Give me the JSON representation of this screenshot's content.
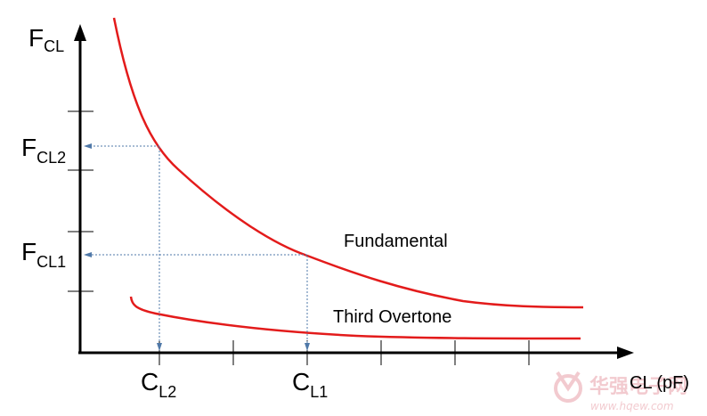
{
  "chart_data": {
    "type": "line",
    "title": "",
    "ylabel": "F",
    "ylabel_sub": "CL",
    "xlabel": "CL (pF)",
    "series": [
      {
        "name": "Fundamental",
        "color": "#e31b1b"
      },
      {
        "name": "Third Overtone",
        "color": "#e31b1b"
      }
    ],
    "markers": {
      "x": [
        {
          "main": "C",
          "sub": "L2"
        },
        {
          "main": "C",
          "sub": "L1"
        }
      ],
      "y": [
        {
          "main": "F",
          "sub": "CL2"
        },
        {
          "main": "F",
          "sub": "CL1"
        }
      ]
    }
  },
  "colors": {
    "axis": "#000000",
    "curve": "#e31b1b",
    "guide": "#4f78a8",
    "watermark": "#e8a0a8"
  },
  "watermark": {
    "brand": "华强电子网",
    "url": "www.hqew.com"
  }
}
